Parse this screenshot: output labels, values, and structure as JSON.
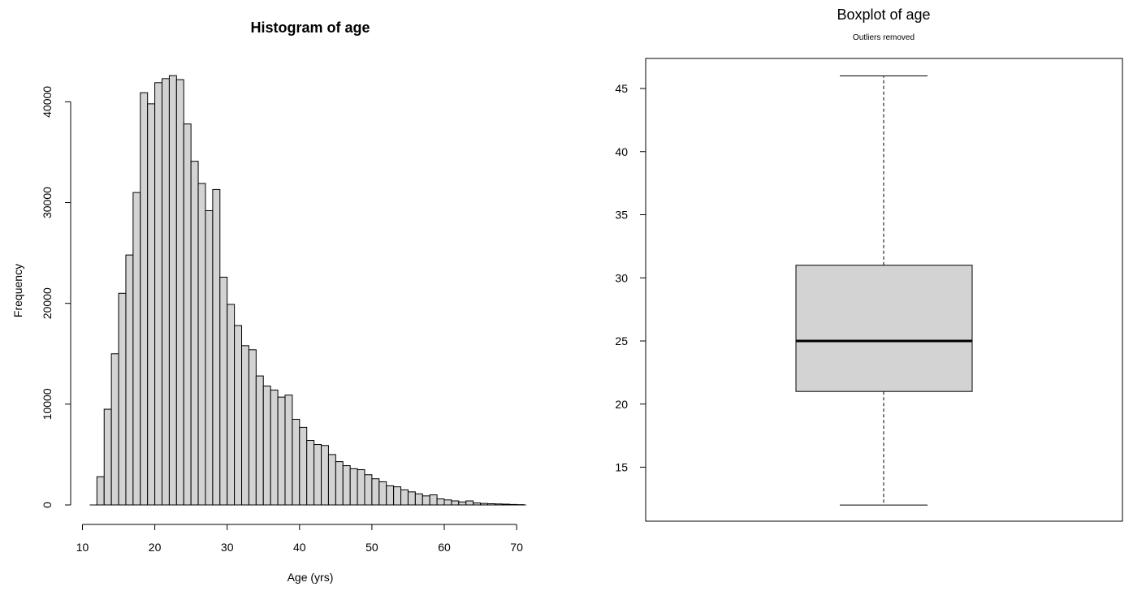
{
  "chart_data": [
    {
      "type": "bar",
      "title": "Histogram of age",
      "xlabel": "Age (yrs)",
      "ylabel": "Frequency",
      "xlim": [
        10,
        72
      ],
      "ylim": [
        0,
        43000
      ],
      "xticks": [
        10,
        20,
        30,
        40,
        50,
        60,
        70
      ],
      "yticks": [
        0,
        10000,
        20000,
        30000,
        40000
      ],
      "bin_width": 1,
      "bin_starts": [
        12,
        13,
        14,
        15,
        16,
        17,
        18,
        19,
        20,
        21,
        22,
        23,
        24,
        25,
        26,
        27,
        28,
        29,
        30,
        31,
        32,
        33,
        34,
        35,
        36,
        37,
        38,
        39,
        40,
        41,
        42,
        43,
        44,
        45,
        46,
        47,
        48,
        49,
        50,
        51,
        52,
        53,
        54,
        55,
        56,
        57,
        58,
        59,
        60,
        61,
        62,
        63,
        64,
        65,
        66,
        67,
        68,
        69,
        70
      ],
      "values": [
        2800,
        9500,
        15000,
        21000,
        24800,
        31000,
        40900,
        39800,
        41900,
        42300,
        42600,
        42200,
        37800,
        34100,
        31900,
        29200,
        31300,
        22600,
        19900,
        17800,
        15800,
        15400,
        12800,
        11800,
        11400,
        10700,
        10900,
        8500,
        7700,
        6400,
        6000,
        5900,
        5000,
        4300,
        3900,
        3600,
        3500,
        3000,
        2600,
        2300,
        1900,
        1800,
        1500,
        1300,
        1100,
        900,
        1000,
        600,
        500,
        400,
        300,
        400,
        200,
        150,
        120,
        100,
        80,
        50,
        30
      ],
      "fill_color": "#d3d3d3"
    },
    {
      "type": "boxplot",
      "title": "Boxplot of age",
      "subtitle": "Outliers removed",
      "ylim": [
        11,
        47
      ],
      "yticks": [
        15,
        20,
        25,
        30,
        35,
        40,
        45
      ],
      "whisker_low": 12,
      "q1": 21,
      "median": 25,
      "q3": 31,
      "whisker_high": 46,
      "fill_color": "#d3d3d3"
    }
  ]
}
